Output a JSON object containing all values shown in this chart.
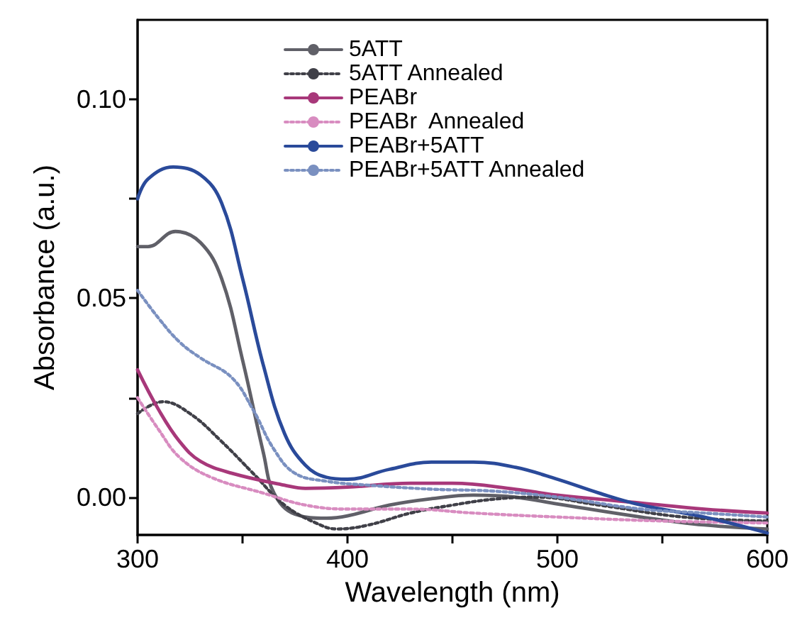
{
  "chart_data": {
    "type": "line",
    "xlabel": "Wavelength (nm)",
    "ylabel": "Absorbance (a.u.)",
    "xlim": [
      300,
      600
    ],
    "xticks": [
      300,
      {
        "value": 350,
        "label": null
      },
      400,
      {
        "value": 450,
        "label": null
      },
      500,
      {
        "value": 550,
        "label": null
      },
      600
    ],
    "ylim": [
      -0.0095,
      0.12
    ],
    "yticks": [
      {
        "value": 0,
        "label": "0.00"
      },
      {
        "value": 0.025,
        "label": null
      },
      {
        "value": 0.05,
        "label": "0.05"
      },
      {
        "value": 0.075,
        "label": null
      },
      {
        "value": 0.1,
        "label": "0.10"
      }
    ],
    "grid": false,
    "legend": "top",
    "marker": "none",
    "series": [
      {
        "name": "5ATT",
        "color": "#606068",
        "line_style": "solid",
        "x": [
          300,
          305,
          318,
          330,
          340,
          350,
          360,
          365,
          375,
          390,
          400,
          420,
          440,
          460,
          480,
          500,
          540,
          570,
          600
        ],
        "values": [
          0.063,
          0.063,
          0.0668,
          0.064,
          0.055,
          0.0345,
          0.011,
          0.001,
          -0.0043,
          -0.0053,
          -0.0047,
          -0.002,
          -0.0004,
          0.0005,
          0,
          -0.0017,
          -0.005,
          -0.007,
          -0.008
        ]
      },
      {
        "name": "5ATT Annealed",
        "color": "#404048",
        "line_style": "dotted",
        "x": [
          300,
          312,
          325,
          340,
          355,
          370,
          385,
          395,
          410,
          430,
          450,
          470,
          490,
          520,
          560,
          600
        ],
        "values": [
          0.021,
          0.024,
          0.021,
          0.014,
          0.006,
          -0.002,
          -0.0065,
          -0.008,
          -0.007,
          -0.004,
          -0.002,
          -0.0005,
          0,
          -0.002,
          -0.005,
          -0.006
        ]
      },
      {
        "name": "PEABr",
        "color": "#a8387a",
        "line_style": "solid",
        "x": [
          300,
          310,
          320,
          330,
          345,
          370,
          380,
          400,
          430,
          450,
          480,
          500,
          540,
          570,
          600
        ],
        "values": [
          0.032,
          0.022,
          0.014,
          0.009,
          0.006,
          0.003,
          0.0022,
          0.0025,
          0.0035,
          0.0035,
          0.002,
          0.0005,
          -0.0015,
          -0.003,
          -0.004
        ]
      },
      {
        "name": "PEABr  Annealed",
        "color": "#d88cc0",
        "line_style": "dotted",
        "x": [
          300,
          310,
          320,
          335,
          360,
          380,
          400,
          430,
          460,
          500,
          550,
          600
        ],
        "values": [
          0.025,
          0.017,
          0.01,
          0.005,
          0.001,
          -0.002,
          -0.003,
          -0.003,
          -0.004,
          -0.005,
          -0.006,
          -0.0065
        ]
      },
      {
        "name": "PEABr+5ATT",
        "color": "#2a4a9a",
        "line_style": "solid",
        "x": [
          300,
          305,
          317,
          330,
          340,
          350,
          360,
          370,
          380,
          390,
          400,
          420,
          440,
          460,
          480,
          500,
          520,
          540,
          570,
          600
        ],
        "values": [
          0.075,
          0.08,
          0.083,
          0.081,
          0.074,
          0.055,
          0.033,
          0.016,
          0.008,
          0.005,
          0.0045,
          0.007,
          0.0088,
          0.0088,
          0.0075,
          0.0045,
          0.001,
          -0.002,
          -0.005,
          -0.009
        ]
      },
      {
        "name": "PEABr+5ATT Annealed",
        "color": "#7a90c0",
        "line_style": "dotted",
        "x": [
          300,
          310,
          320,
          330,
          345,
          355,
          365,
          375,
          390,
          410,
          440,
          470,
          500,
          540,
          570,
          600
        ],
        "values": [
          0.052,
          0.045,
          0.039,
          0.035,
          0.03,
          0.022,
          0.012,
          0.006,
          0.004,
          0.003,
          0.002,
          0.0015,
          0,
          -0.003,
          -0.004,
          -0.005
        ]
      }
    ]
  }
}
